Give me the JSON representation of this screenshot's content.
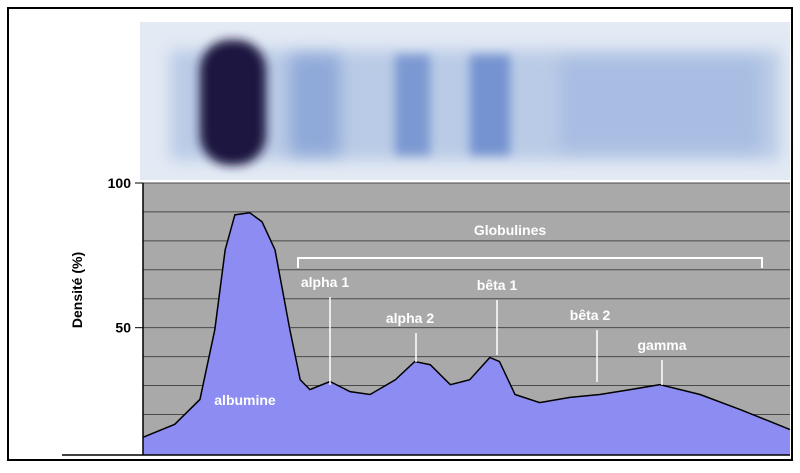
{
  "chart_data": {
    "type": "area",
    "y_label": "Densité (%)",
    "x": [
      0,
      4.9,
      8.8,
      11.1,
      12.7,
      14.2,
      16.5,
      18.4,
      20.4,
      22.7,
      24.3,
      25.8,
      28.9,
      32,
      35.1,
      39,
      42,
      44.4,
      47.5,
      50.5,
      53.6,
      55.1,
      57.5,
      61.3,
      66,
      70.6,
      75.3,
      79.9,
      86.1,
      92.3,
      96.9,
      100
    ],
    "values": [
      12.1,
      16.6,
      25.2,
      49.3,
      76.9,
      89,
      89.7,
      86.6,
      76.9,
      49.3,
      32,
      28.6,
      31.4,
      27.9,
      26.9,
      32,
      38.3,
      37.2,
      30.3,
      32,
      39.7,
      38.3,
      26.9,
      24.1,
      25.9,
      26.9,
      28.6,
      30.3,
      26.9,
      21.7,
      17.6,
      14.8
    ],
    "color": "#8c8cf2",
    "xlim": [
      0,
      100
    ],
    "ylim": [
      6,
      100
    ],
    "yticks": [
      50,
      100
    ],
    "minor_yticks": [
      10,
      20,
      30,
      40,
      60,
      70,
      80,
      90
    ],
    "grid": true,
    "annotations": [
      "albumine",
      "alpha 1",
      "alpha 2",
      "bêta 1",
      "bêta 2",
      "gamma",
      "Globulines"
    ]
  }
}
